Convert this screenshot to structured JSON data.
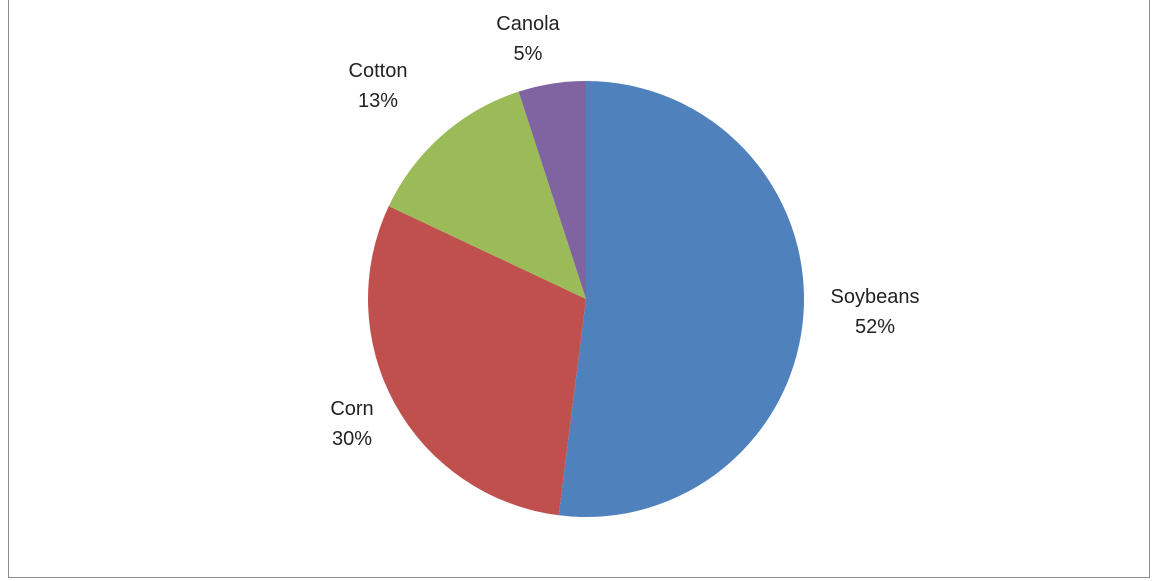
{
  "chart_data": {
    "type": "pie",
    "start_angle_deg": 0,
    "direction": "clockwise",
    "legend": "none",
    "slices": [
      {
        "label": "Soybeans",
        "value": 52,
        "value_label": "52%",
        "color": "#4F81BD"
      },
      {
        "label": "Corn",
        "value": 30,
        "value_label": "30%",
        "color": "#C0504D"
      },
      {
        "label": "Cotton",
        "value": 13,
        "value_label": "13%",
        "color": "#9BBB59"
      },
      {
        "label": "Canola",
        "value": 5,
        "value_label": "5%",
        "color": "#8064A2"
      }
    ]
  }
}
